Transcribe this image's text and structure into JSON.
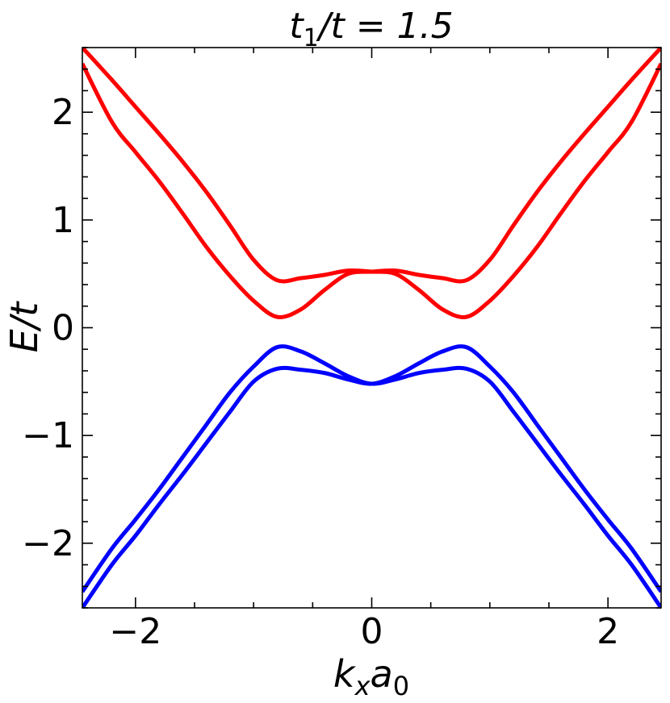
{
  "chart_data": {
    "type": "line",
    "title_math": {
      "a": "t",
      "a_sub": "1",
      "b": "/t = 1.5"
    },
    "xlabel_math": {
      "k": "k",
      "k_sub": "x",
      "a": "a",
      "a_sub": "0"
    },
    "ylabel": "E/t",
    "xlim": [
      -2.45,
      2.45
    ],
    "ylim": [
      -2.6,
      2.6
    ],
    "xticks": [
      {
        "value": -2,
        "label": "−2"
      },
      {
        "value": 0,
        "label": "0"
      },
      {
        "value": 2,
        "label": "2"
      }
    ],
    "yticks": [
      {
        "value": -2,
        "label": "−2"
      },
      {
        "value": -1,
        "label": "−1"
      },
      {
        "value": 0,
        "label": "0"
      },
      {
        "value": 1,
        "label": "1"
      },
      {
        "value": 2,
        "label": "2"
      }
    ],
    "grid": false,
    "colors": {
      "conduction": "#ff0000",
      "valence": "#0000ff",
      "axes": "#000000"
    },
    "series": [
      {
        "band": "conduction-upper",
        "color": "#ff0000",
        "x": [
          -2.45,
          -2.2,
          -2.0,
          -1.8,
          -1.6,
          -1.4,
          -1.2,
          -1.0,
          -0.8,
          -0.6,
          -0.4,
          -0.2,
          0.0,
          0.2,
          0.4,
          0.6,
          0.8,
          1.0,
          1.2,
          1.4,
          1.6,
          1.8,
          2.0,
          2.2,
          2.45
        ],
        "y": [
          2.6,
          2.3,
          2.05,
          1.8,
          1.54,
          1.26,
          0.95,
          0.63,
          0.44,
          0.46,
          0.49,
          0.53,
          0.52,
          0.5,
          0.35,
          0.17,
          0.1,
          0.25,
          0.48,
          0.75,
          1.06,
          1.36,
          1.63,
          1.91,
          2.45
        ]
      },
      {
        "band": "conduction-lower",
        "color": "#ff0000",
        "x": [
          -2.45,
          -2.2,
          -2.0,
          -1.8,
          -1.6,
          -1.4,
          -1.2,
          -1.0,
          -0.8,
          -0.6,
          -0.4,
          -0.2,
          0.0,
          0.2,
          0.4,
          0.6,
          0.8,
          1.0,
          1.2,
          1.4,
          1.6,
          1.8,
          2.0,
          2.2,
          2.45
        ],
        "y": [
          2.45,
          1.91,
          1.63,
          1.36,
          1.06,
          0.75,
          0.48,
          0.25,
          0.1,
          0.17,
          0.35,
          0.5,
          0.52,
          0.53,
          0.49,
          0.46,
          0.44,
          0.63,
          0.95,
          1.26,
          1.54,
          1.8,
          2.05,
          2.3,
          2.6
        ]
      },
      {
        "band": "valence-upper",
        "color": "#0000ff",
        "x": [
          -2.45,
          -2.2,
          -2.0,
          -1.8,
          -1.6,
          -1.4,
          -1.2,
          -1.0,
          -0.8,
          -0.6,
          -0.4,
          -0.2,
          0.0,
          0.2,
          0.4,
          0.6,
          0.8,
          1.0,
          1.2,
          1.4,
          1.6,
          1.8,
          2.0,
          2.2,
          2.45
        ],
        "y": [
          -2.45,
          -2.05,
          -1.78,
          -1.5,
          -1.2,
          -0.9,
          -0.6,
          -0.36,
          -0.18,
          -0.22,
          -0.33,
          -0.45,
          -0.52,
          -0.48,
          -0.42,
          -0.39,
          -0.38,
          -0.5,
          -0.78,
          -1.07,
          -1.36,
          -1.64,
          -1.93,
          -2.2,
          -2.6
        ]
      },
      {
        "band": "valence-lower",
        "color": "#0000ff",
        "x": [
          -2.45,
          -2.2,
          -2.0,
          -1.8,
          -1.6,
          -1.4,
          -1.2,
          -1.0,
          -0.8,
          -0.6,
          -0.4,
          -0.2,
          0.0,
          0.2,
          0.4,
          0.6,
          0.8,
          1.0,
          1.2,
          1.4,
          1.6,
          1.8,
          2.0,
          2.2,
          2.45
        ],
        "y": [
          -2.6,
          -2.2,
          -1.93,
          -1.64,
          -1.36,
          -1.07,
          -0.78,
          -0.5,
          -0.38,
          -0.39,
          -0.42,
          -0.48,
          -0.52,
          -0.45,
          -0.33,
          -0.22,
          -0.18,
          -0.36,
          -0.6,
          -0.9,
          -1.2,
          -1.5,
          -1.78,
          -2.05,
          -2.45
        ]
      }
    ]
  }
}
